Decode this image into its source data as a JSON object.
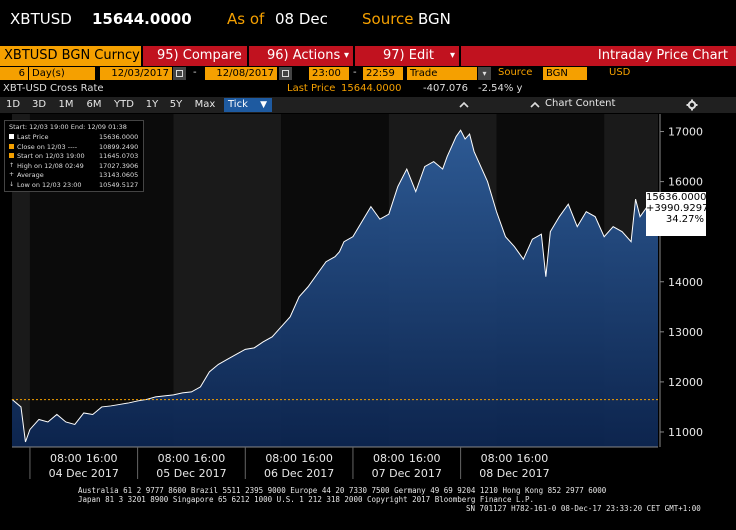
{
  "header": {
    "ticker": "XBTUSD",
    "price": "15644.0000",
    "as_of_label": "As of",
    "as_of_date": "08 Dec",
    "source_label": "Source",
    "source_value": "BGN"
  },
  "toolbar": {
    "security": "XBTUSD BGN Curncy",
    "compare": "95) Compare",
    "actions": "96) Actions",
    "edit": "97) Edit",
    "title": "Intraday Price Chart",
    "dropdown_glyph": "▾"
  },
  "settings": {
    "days": "6",
    "days_unit": "Day(s)",
    "start_date": "12/03/2017",
    "end_date": "12/08/2017",
    "dash": "-",
    "start_time": "23:00",
    "end_time": "22:59",
    "field": "Trade",
    "source_label": "Source",
    "source_value": "BGN",
    "currency": "USD"
  },
  "info": {
    "series_name": "XBT-USD Cross Rate",
    "last_price_label": "Last Price",
    "last_price_value": "15644.0000",
    "change": "-407.076",
    "change_pct": "-2.54% y",
    "chart_content": "Chart Content"
  },
  "periods": [
    "1D",
    "3D",
    "1M",
    "6M",
    "YTD",
    "1Y",
    "5Y",
    "Max"
  ],
  "period_active": "Tick",
  "legend": {
    "range": "Start: 12/03 19:00 End: 12/09 01:38",
    "rows": [
      {
        "color": "#ffffff",
        "label": "Last Price",
        "value": "15636.0000"
      },
      {
        "color": "#f5a000",
        "label": "Close on 12/03 ----",
        "value": "10899.2490"
      },
      {
        "color": "#f5a000",
        "label": "Start on 12/03 19:00",
        "value": "11645.0703"
      },
      {
        "color": "#ffffff",
        "label": "High on 12/08 02:49",
        "value": "17027.3906",
        "glyph": "↑"
      },
      {
        "color": "#ffffff",
        "label": "Average",
        "value": "13143.0605",
        "glyph": "+"
      },
      {
        "color": "#ffffff",
        "label": "Low on 12/03 23:00",
        "value": "10549.5127",
        "glyph": "↓"
      }
    ]
  },
  "last_box": {
    "price": "15636.0000",
    "change": "+3990.9297",
    "pct": "34.27%"
  },
  "chart_data": {
    "type": "area",
    "ylim": [
      10700,
      17350
    ],
    "y_ticks": [
      11000,
      12000,
      13000,
      14000,
      15000,
      16000,
      17000
    ],
    "x_hour_labels": [
      "08:00",
      "16:00",
      "08:00",
      "16:00",
      "08:00",
      "16:00",
      "08:00",
      "16:00",
      "08:00",
      "16:00"
    ],
    "x_day_labels": [
      "04 Dec 2017",
      "05 Dec 2017",
      "06 Dec 2017",
      "07 Dec 2017",
      "08 Dec 2017"
    ],
    "reference_line": 11645.0703,
    "series": [
      {
        "x": [
          0,
          2,
          3,
          4,
          6,
          8,
          10,
          12,
          14,
          16,
          18,
          20,
          22,
          24,
          26,
          28,
          30,
          32,
          34,
          36,
          38,
          40,
          42,
          44,
          46,
          48,
          50,
          52,
          54,
          56,
          58,
          60,
          62,
          64,
          66,
          68,
          70,
          72,
          73,
          74,
          76,
          78,
          80,
          82,
          84,
          86,
          88,
          90,
          92,
          94,
          96,
          97,
          98,
          99,
          100,
          101,
          102,
          103,
          104,
          106,
          108,
          110,
          112,
          114,
          116,
          118,
          119,
          120,
          122,
          124,
          126,
          128,
          130,
          132,
          134,
          136,
          138,
          139,
          140,
          142,
          144
        ],
        "values": [
          11650,
          11500,
          10800,
          11050,
          11250,
          11200,
          11350,
          11200,
          11150,
          11380,
          11350,
          11500,
          11520,
          11550,
          11580,
          11620,
          11650,
          11700,
          11720,
          11740,
          11780,
          11800,
          11900,
          12200,
          12350,
          12450,
          12550,
          12650,
          12680,
          12800,
          12900,
          13100,
          13300,
          13700,
          13900,
          14150,
          14400,
          14500,
          14600,
          14800,
          14900,
          15200,
          15500,
          15250,
          15350,
          15900,
          16250,
          15800,
          16300,
          16400,
          16250,
          16500,
          16700,
          16900,
          17027,
          16850,
          16950,
          16600,
          16400,
          16000,
          15400,
          14900,
          14700,
          14450,
          14850,
          14950,
          14100,
          15000,
          15300,
          15550,
          15100,
          15400,
          15300,
          14900,
          15100,
          15000,
          14800,
          15650,
          15300,
          15550,
          15636
        ]
      }
    ]
  },
  "footer": {
    "line1": "Australia 61 2 9777 8600 Brazil 5511 2395 9000 Europe 44 20 7330 7500 Germany 49 69 9204 1210 Hong Kong 852 2977 6000",
    "line2": "Japan 81 3 3201 8900      Singapore 65 6212 1000      U.S. 1 212 318 2000          Copyright 2017 Bloomberg Finance L.P.",
    "line3": "SN 701127 H782-161-0 08-Dec-17 23:33:20 CET  GMT+1:00"
  }
}
